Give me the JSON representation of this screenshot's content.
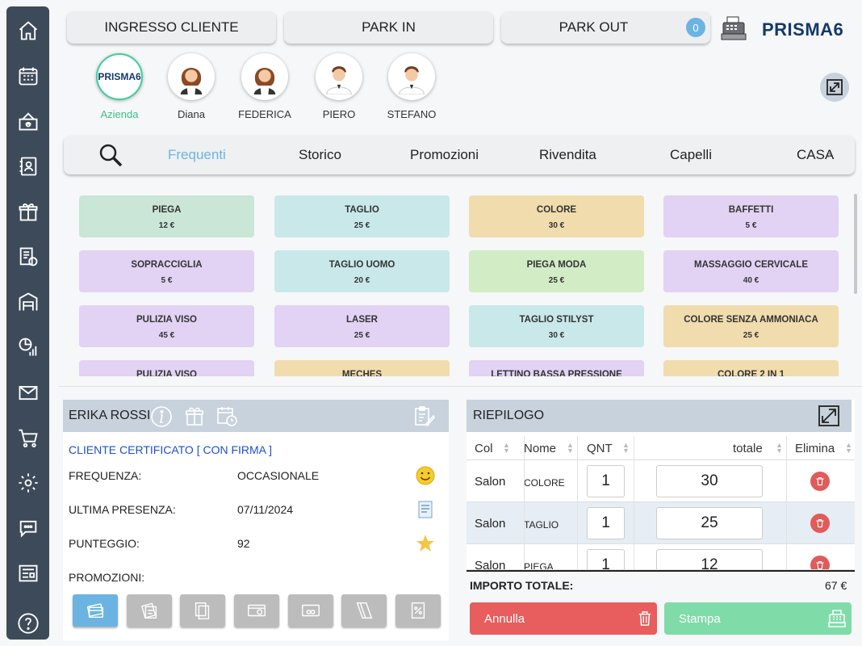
{
  "topbar": {
    "ingresso_label": "INGRESSO CLIENTE",
    "park_in_label": "PARK IN",
    "park_out_label": "PARK OUT",
    "park_out_count": "0",
    "brand": "PRISMA6"
  },
  "staff": [
    {
      "name": "Azienda",
      "logo": "PRISMA6",
      "active": true
    },
    {
      "name": "Diana"
    },
    {
      "name": "FEDERICA"
    },
    {
      "name": "PIERO"
    },
    {
      "name": "STEFANO"
    }
  ],
  "tabs": [
    "Frequenti",
    "Storico",
    "Promozioni",
    "Rivendita",
    "Capelli",
    "CASA"
  ],
  "active_tab": "Frequenti",
  "services": [
    {
      "name": "PIEGA",
      "price": "12 €",
      "color": "#c9e6d6"
    },
    {
      "name": "TAGLIO",
      "price": "25 €",
      "color": "#c9e8ea"
    },
    {
      "name": "COLORE",
      "price": "30 €",
      "color": "#f1dcae"
    },
    {
      "name": "BAFFETTI",
      "price": "5 €",
      "color": "#e2d2f4"
    },
    {
      "name": "SOPRACCIGLIA",
      "price": "5 €",
      "color": "#e2d2f4"
    },
    {
      "name": "TAGLIO UOMO",
      "price": "20 €",
      "color": "#c9e8ea"
    },
    {
      "name": "PIEGA MODA",
      "price": "25 €",
      "color": "#d2ecc5"
    },
    {
      "name": "MASSAGGIO CERVICALE",
      "price": "40 €",
      "color": "#e2d2f4"
    },
    {
      "name": "PULIZIA VISO",
      "price": "45 €",
      "color": "#e2d2f4"
    },
    {
      "name": "LASER",
      "price": "25 €",
      "color": "#e2d2f4"
    },
    {
      "name": "TAGLIO STILYST",
      "price": "30 €",
      "color": "#c9e8ea"
    },
    {
      "name": "COLORE SENZA AMMONIACA",
      "price": "25 €",
      "color": "#f1dcae"
    },
    {
      "name": "PULIZIA VISO",
      "price": "",
      "color": "#e2d2f4"
    },
    {
      "name": "MECHES",
      "price": "",
      "color": "#f1dcae"
    },
    {
      "name": "LETTINO BASSA PRESSIONE",
      "price": "",
      "color": "#e2d2f4"
    },
    {
      "name": "COLORE 2 IN 1",
      "price": "",
      "color": "#f1dcae"
    }
  ],
  "client": {
    "name": "ERIKA ROSSI",
    "certified": "CLIENTE CERTIFICATO [ CON FIRMA ]",
    "frequency_label": "FREQUENZA:",
    "frequency_value": "OCCASIONALE",
    "last_label": "ULTIMA PRESENZA:",
    "last_value": "07/11/2024",
    "score_label": "PUNTEGGIO:",
    "score_value": "92",
    "promo_label": "PROMOZIONI:"
  },
  "summary": {
    "title": "RIEPILOGO",
    "columns": [
      "Col",
      "Nome",
      "QNT",
      "totale",
      "Elimina"
    ],
    "rows": [
      {
        "col": "Salon",
        "name": "COLORE",
        "qty": "1",
        "total": "30"
      },
      {
        "col": "Salon",
        "name": "TAGLIO",
        "qty": "1",
        "total": "25"
      },
      {
        "col": "Salon",
        "name": "PIEGA",
        "qty": "1",
        "total": "12"
      }
    ],
    "total_label": "IMPORTO TOTALE:",
    "total_value": "67 €"
  },
  "actions": {
    "cancel_label": "Annulla",
    "print_label": "Stampa",
    "cancel_color": "#e85d5d",
    "print_color": "#7fdca9"
  },
  "accent_color": "#3d4a59"
}
